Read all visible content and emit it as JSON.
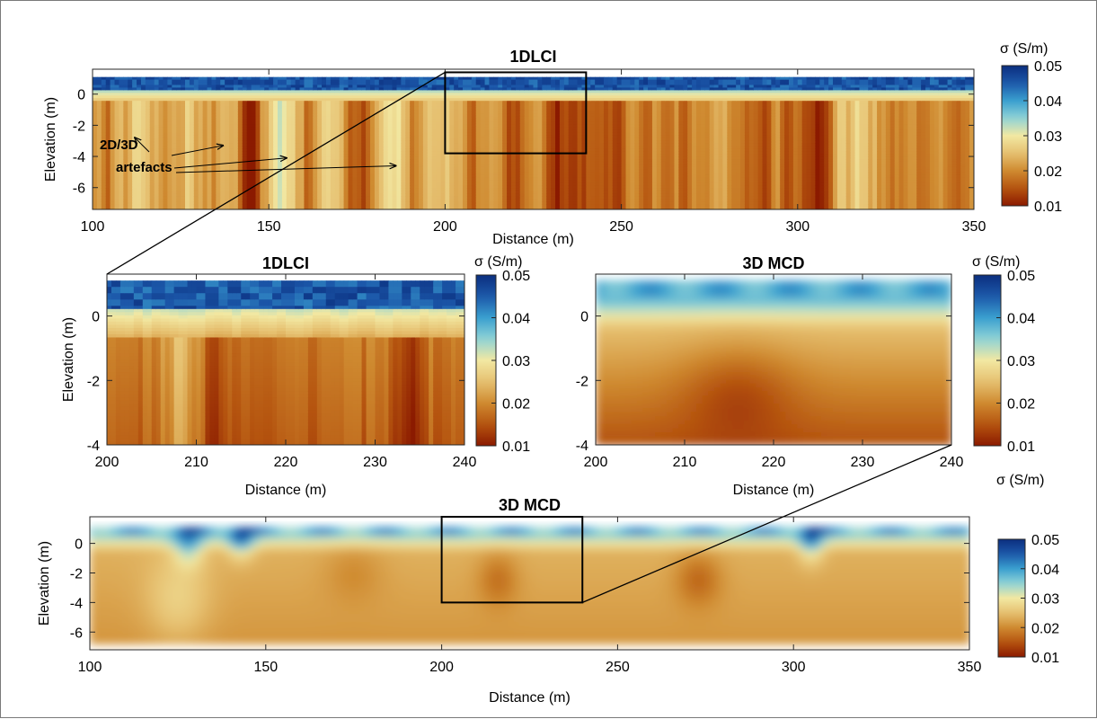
{
  "colormap": {
    "stops": [
      "#8b1a00",
      "#b5540f",
      "#cf8a30",
      "#e6c070",
      "#f2e8a2",
      "#8fd3d6",
      "#3a9fcf",
      "#1c58aa",
      "#0b2f7f"
    ],
    "min": 0.01,
    "max": 0.05
  },
  "chart_data": [
    {
      "id": "top",
      "type": "heatmap",
      "title": "1DLCI",
      "xlabel": "Distance (m)",
      "ylabel": "Elevation (m)",
      "xlim": [
        100,
        350
      ],
      "ylim": [
        -7.4,
        1.6
      ],
      "xticks": [
        100,
        150,
        200,
        250,
        300,
        350
      ],
      "yticks": [
        0,
        -2,
        -4,
        -6
      ],
      "surface_elevation": 1.1,
      "bottom_elevation": -7.4,
      "colorbar": {
        "label": "σ (S/m)",
        "ticks": [
          0.05,
          0.04,
          0.03,
          0.02,
          0.01
        ]
      },
      "zoom_box": {
        "x": [
          200,
          240
        ],
        "y": [
          -3.8,
          1.4
        ]
      },
      "annotations": {
        "line1": "2D/3D",
        "line2": "artefacts"
      },
      "annotation_targets": [
        [
          112,
          -2.8
        ],
        [
          137,
          -3.3
        ],
        [
          155,
          -4.1
        ],
        [
          186,
          -4.6
        ]
      ]
    },
    {
      "id": "midleft",
      "type": "heatmap",
      "title": "1DLCI",
      "xlabel": "Distance (m)",
      "ylabel": "Elevation (m)",
      "xlim": [
        200,
        240
      ],
      "ylim": [
        -4,
        1.3
      ],
      "xticks": [
        200,
        210,
        220,
        230,
        240
      ],
      "yticks": [
        0,
        -2,
        -4
      ],
      "surface_elevation": 1.1,
      "colorbar": {
        "label": "σ (S/m)",
        "ticks": [
          0.05,
          0.04,
          0.03,
          0.02,
          0.01
        ]
      }
    },
    {
      "id": "midright",
      "type": "heatmap",
      "title": "3D MCD",
      "xlabel": "Distance (m)",
      "ylabel": "",
      "xlim": [
        200,
        240
      ],
      "ylim": [
        -4,
        1.3
      ],
      "xticks": [
        200,
        210,
        220,
        230,
        240
      ],
      "yticks": [
        0,
        -2,
        -4
      ],
      "surface_elevation": 1.1,
      "colorbar": {
        "label": "σ (S/m)",
        "ticks": [
          0.05,
          0.04,
          0.03,
          0.02,
          0.01
        ]
      }
    },
    {
      "id": "bottom",
      "type": "heatmap",
      "title": "3D MCD",
      "xlabel": "Distance (m)",
      "ylabel": "Elevation (m)",
      "xlim": [
        100,
        350
      ],
      "ylim": [
        -7.2,
        1.8
      ],
      "xticks": [
        100,
        150,
        200,
        250,
        300,
        350
      ],
      "yticks": [
        0,
        -2,
        -4,
        -6
      ],
      "surface_elevation": 1.1,
      "bottom_elevation": -6.8,
      "colorbar": {
        "label": "σ (S/m)",
        "ticks": [
          0.05,
          0.04,
          0.03,
          0.02,
          0.01
        ]
      },
      "zoom_box": {
        "x": [
          200,
          240
        ],
        "y": [
          -4,
          1.8
        ]
      }
    }
  ]
}
